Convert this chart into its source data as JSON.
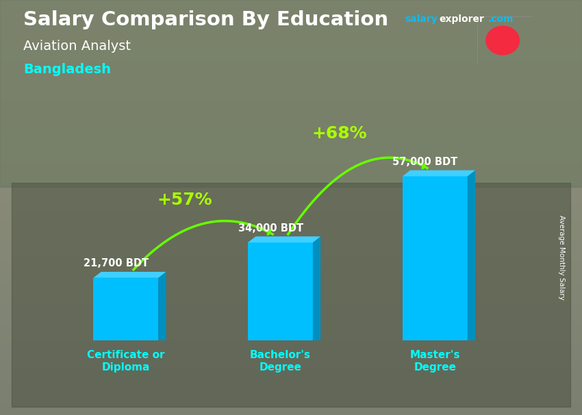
{
  "title": "Salary Comparison By Education",
  "subtitle": "Aviation Analyst",
  "country": "Bangladesh",
  "ylabel": "Average Monthly Salary",
  "categories": [
    "Certificate or\nDiploma",
    "Bachelor's\nDegree",
    "Master's\nDegree"
  ],
  "values": [
    21700,
    34000,
    57000
  ],
  "value_labels": [
    "21,700 BDT",
    "34,000 BDT",
    "57,000 BDT"
  ],
  "pct_labels": [
    "+57%",
    "+68%"
  ],
  "bar_color_face": "#00BFFF",
  "bar_color_side": "#0090C0",
  "bar_color_top": "#40D0FF",
  "title_color": "#FFFFFF",
  "subtitle_color": "#FFFFFF",
  "country_color": "#00FFFF",
  "value_label_color": "#FFFFFF",
  "pct_label_color": "#AAFF00",
  "arrow_color": "#66FF00",
  "xlabel_color": "#00FFFF",
  "salary_label_color": "#FFFFFF",
  "site_salary_color": "#00BFFF",
  "site_explorer_color": "#FFFFFF",
  "bg_top_color": "#7A8A7A",
  "bg_bottom_color": "#5A6A5A",
  "flag_green": "#006A4E",
  "flag_red": "#F42A41",
  "ylim": [
    0,
    75000
  ],
  "bar_width": 0.42,
  "fig_width": 8.5,
  "fig_height": 6.06
}
